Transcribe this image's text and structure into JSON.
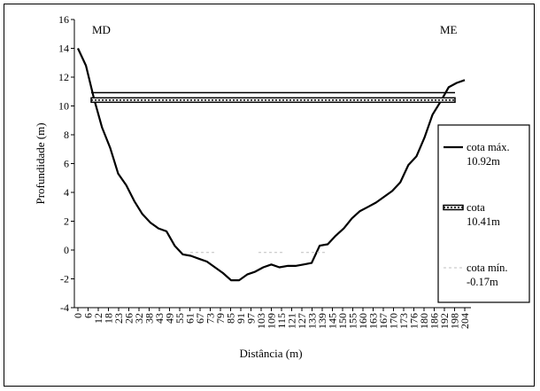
{
  "chart_data": {
    "type": "line",
    "xlabel": "Distância (m)",
    "ylabel": "Profundidade (m)",
    "ylim": [
      -4,
      16
    ],
    "yticks": [
      -4,
      -2,
      0,
      2,
      4,
      6,
      8,
      10,
      12,
      14,
      16
    ],
    "xtick_labels": [
      "0",
      "6",
      "12",
      "18",
      "23",
      "26",
      "32",
      "38",
      "43",
      "49",
      "55",
      "61",
      "67",
      "73",
      "79",
      "85",
      "91",
      "97",
      "103",
      "109",
      "115",
      "121",
      "127",
      "133",
      "139",
      "145",
      "150",
      "155",
      "160",
      "163",
      "167",
      "170",
      "173",
      "176",
      "180",
      "186",
      "192",
      "198",
      "204"
    ],
    "annotations": {
      "left": "MD",
      "right": "ME"
    },
    "series": [
      {
        "name": "cota máx. 10.92m",
        "kind": "profile",
        "color": "#000000",
        "x": [
          0,
          1,
          2,
          3,
          4,
          5,
          6,
          7,
          8,
          9,
          10,
          11,
          12,
          13,
          14,
          15,
          16,
          17,
          18,
          19,
          20,
          21,
          22,
          23,
          24,
          25,
          26,
          27,
          28,
          29,
          30,
          31,
          32,
          33,
          34,
          35,
          36,
          37,
          38,
          39,
          40,
          41,
          42,
          43,
          44,
          45,
          46,
          47,
          48
        ],
        "values": [
          14,
          12.8,
          10.5,
          8.5,
          7.1,
          5.3,
          4.5,
          3.4,
          2.5,
          1.9,
          1.5,
          1.3,
          0.3,
          -0.3,
          -0.4,
          -0.6,
          -0.8,
          -1.2,
          -1.6,
          -2.1,
          -2.1,
          -1.7,
          -1.5,
          -1.2,
          -1.0,
          -1.2,
          -1.1,
          -1.1,
          -1.0,
          -0.9,
          0.3,
          0.4,
          1.0,
          1.5,
          2.2,
          2.7,
          3.0,
          3.3,
          3.7,
          4.1,
          4.7,
          5.9,
          6.5,
          7.8,
          9.4,
          10.3,
          11.3,
          11.6,
          11.8
        ]
      },
      {
        "name": "cota 10.41m",
        "kind": "level-band",
        "value": 10.41,
        "color": "#000000"
      },
      {
        "name": "cota mín. -0.17m",
        "kind": "level-dotted",
        "value": -0.17,
        "color": "#bfbfbf"
      }
    ],
    "upper_level": 10.92,
    "legend": {
      "position": "right",
      "entries": [
        {
          "line1": "cota máx.",
          "line2": "10.92m",
          "style": "solid"
        },
        {
          "line1": "cota",
          "line2": "10.41m",
          "style": "band"
        },
        {
          "line1": "cota mín.",
          "line2": "-0.17m",
          "style": "dotted"
        }
      ]
    }
  }
}
